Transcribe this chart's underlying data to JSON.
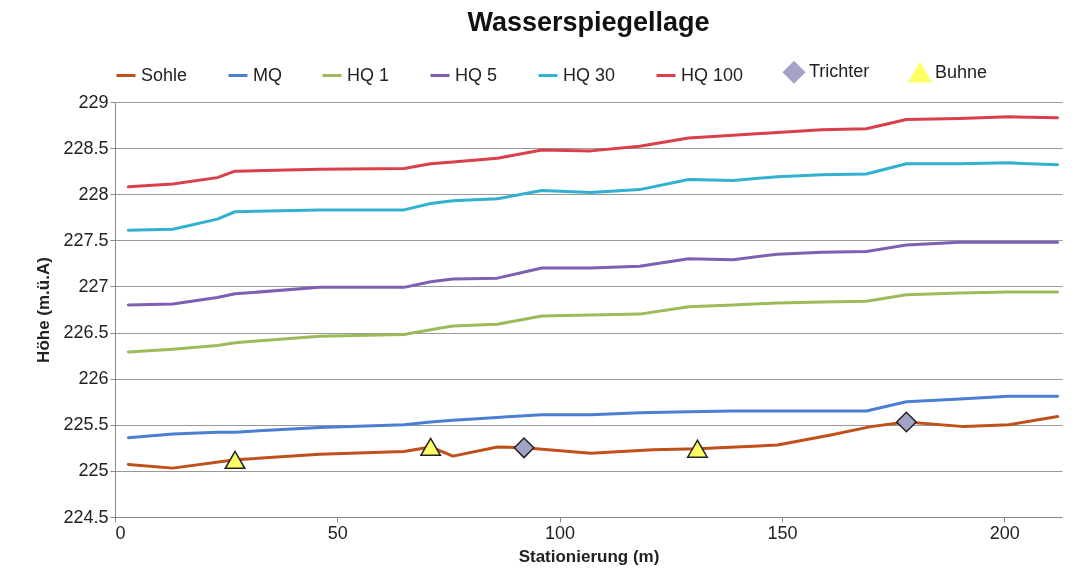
{
  "chart_data": {
    "type": "line",
    "title": "Wasserspiegellage",
    "xlabel": "Stationierung (m)",
    "ylabel": "Höhe (m.ü.A)",
    "xlim": [
      0,
      213
    ],
    "xticks": [
      0,
      50,
      100,
      150,
      200
    ],
    "ylim": [
      224.5,
      229
    ],
    "yticks": [
      224.5,
      225,
      225.5,
      226,
      226.5,
      227,
      227.5,
      228,
      228.5,
      229
    ],
    "grid": "y",
    "legend": "top",
    "x": [
      3,
      13,
      23,
      27,
      46,
      65,
      71,
      76,
      86,
      96,
      107,
      118,
      129,
      139,
      149,
      159,
      169,
      178,
      190,
      201,
      212
    ],
    "series": [
      {
        "name": "Sohle",
        "color": "#c0501a",
        "x": [
          3,
          13,
          27,
          46,
          65,
          71,
          76,
          86,
          92,
          107,
          121,
          131,
          149,
          161,
          170,
          178,
          191,
          201,
          212
        ],
        "values": [
          225.07,
          225.03,
          225.12,
          225.18,
          225.21,
          225.26,
          225.16,
          225.26,
          225.25,
          225.19,
          225.23,
          225.24,
          225.28,
          225.39,
          225.48,
          225.53,
          225.48,
          225.5,
          225.59
        ]
      },
      {
        "name": "MQ",
        "color": "#4a7fd4",
        "values": [
          225.36,
          225.4,
          225.42,
          225.42,
          225.47,
          225.5,
          225.53,
          225.55,
          225.58,
          225.61,
          225.61,
          225.63,
          225.64,
          225.65,
          225.65,
          225.65,
          225.65,
          225.75,
          225.78,
          225.81,
          225.81
        ]
      },
      {
        "name": "HQ 1",
        "color": "#9bbb59",
        "values": [
          226.29,
          226.32,
          226.36,
          226.39,
          226.46,
          226.48,
          226.53,
          226.57,
          226.59,
          226.68,
          226.69,
          226.7,
          226.78,
          226.8,
          226.82,
          226.83,
          226.84,
          226.91,
          226.93,
          226.94,
          226.94
        ]
      },
      {
        "name": "HQ 5",
        "color": "#7f5fb2",
        "values": [
          226.8,
          226.81,
          226.88,
          226.92,
          226.99,
          226.99,
          227.05,
          227.08,
          227.09,
          227.2,
          227.2,
          227.22,
          227.3,
          227.29,
          227.35,
          227.37,
          227.38,
          227.45,
          227.48,
          227.48,
          227.48
        ]
      },
      {
        "name": "HQ 30",
        "color": "#31b0d0",
        "values": [
          227.61,
          227.62,
          227.73,
          227.81,
          227.83,
          227.83,
          227.9,
          227.93,
          227.95,
          228.04,
          228.02,
          228.05,
          228.16,
          228.15,
          228.19,
          228.21,
          228.22,
          228.33,
          228.33,
          228.34,
          228.32
        ]
      },
      {
        "name": "HQ 100",
        "color": "#d9404a",
        "values": [
          228.08,
          228.11,
          228.18,
          228.25,
          228.27,
          228.28,
          228.33,
          228.35,
          228.39,
          228.48,
          228.47,
          228.52,
          228.61,
          228.64,
          228.67,
          228.7,
          228.71,
          228.81,
          228.82,
          228.84,
          228.83
        ]
      },
      {
        "name": "Trichter",
        "type": "scatter",
        "marker": "diamond",
        "color": "#a3a3c8",
        "x": [
          92,
          178
        ],
        "values": [
          225.25,
          225.53
        ]
      },
      {
        "name": "Buhne",
        "type": "scatter",
        "marker": "triangle",
        "color": "#ffff66",
        "x": [
          27,
          71,
          131
        ],
        "values": [
          225.12,
          225.26,
          225.24
        ]
      }
    ]
  }
}
